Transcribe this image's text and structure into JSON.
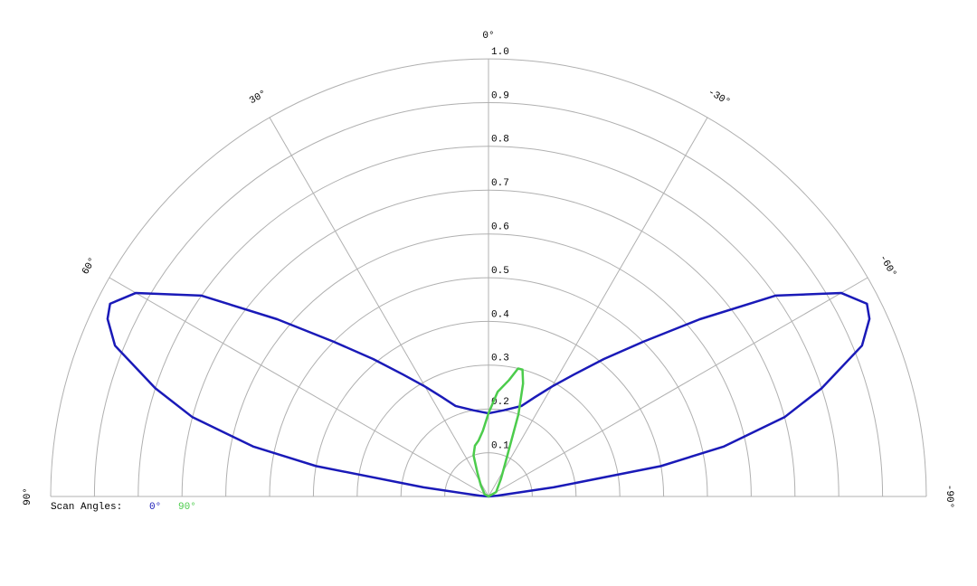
{
  "chart_data": {
    "type": "polar",
    "legend_title": "Scan Angles:",
    "rlim": [
      0,
      1
    ],
    "rticks": [
      0.1,
      0.2,
      0.3,
      0.4,
      0.5,
      0.6,
      0.7,
      0.8,
      0.9,
      {
        "value": 1,
        "label": "1.0"
      }
    ],
    "thetalim": [
      -90,
      90
    ],
    "thetaticks": [
      {
        "value": 90,
        "label": "90°"
      },
      {
        "value": 60,
        "label": "60°"
      },
      {
        "value": 30,
        "label": "30°"
      },
      {
        "value": 0,
        "label": "0°"
      },
      {
        "value": -30,
        "label": "-30°"
      },
      {
        "value": -60,
        "label": "-60°"
      },
      {
        "value": -90,
        "label": "-90°"
      }
    ],
    "grid": true,
    "series": [
      {
        "name": "0°",
        "color": "#1a1ab8",
        "theta": [
          90,
          85,
          82,
          80,
          78,
          75,
          72,
          68,
          65,
          63,
          60,
          55,
          50,
          45,
          40,
          35,
          30,
          25,
          20,
          10,
          0,
          -10,
          -20,
          -25,
          -30,
          -35,
          -40,
          -45,
          -50,
          -55,
          -60,
          -63,
          -65,
          -68,
          -72,
          -75,
          -78,
          -80,
          -82,
          -85,
          -90
        ],
        "values": [
          0.0,
          0.02,
          0.15,
          0.4,
          0.55,
          0.7,
          0.8,
          0.92,
          0.96,
          0.97,
          0.93,
          0.8,
          0.63,
          0.5,
          0.41,
          0.34,
          0.29,
          0.25,
          0.22,
          0.2,
          0.19,
          0.2,
          0.22,
          0.25,
          0.29,
          0.34,
          0.41,
          0.5,
          0.63,
          0.8,
          0.93,
          0.97,
          0.96,
          0.92,
          0.8,
          0.7,
          0.55,
          0.4,
          0.15,
          0.02,
          0.0
        ]
      },
      {
        "name": "90°",
        "color": "#4ccc4c",
        "theta": [
          90,
          60,
          35,
          25,
          20,
          15,
          10,
          5,
          0,
          -5,
          -10,
          -13,
          -15,
          -17,
          -20,
          -25,
          -35,
          -60,
          -90
        ],
        "values": [
          0.0,
          0.01,
          0.03,
          0.06,
          0.1,
          0.12,
          0.13,
          0.15,
          0.19,
          0.24,
          0.27,
          0.3,
          0.3,
          0.27,
          0.2,
          0.1,
          0.05,
          0.02,
          0.0
        ]
      }
    ]
  }
}
